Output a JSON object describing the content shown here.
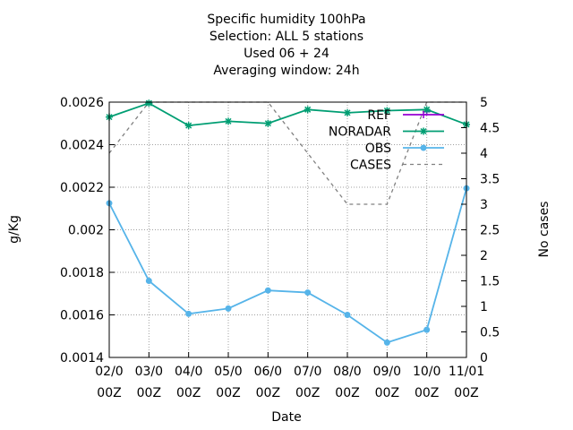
{
  "chart_data": {
    "type": "line",
    "title_lines": [
      "Specific humidity 100hPa",
      "Selection: ALL       5 stations",
      "Used  06  + 24",
      "Averaging window: 24h"
    ],
    "xlabel": "Date",
    "ylabel": "g/Kg",
    "y2label": "No cases",
    "categories": [
      [
        "02/0",
        "00Z"
      ],
      [
        "03/0",
        "00Z"
      ],
      [
        "04/0",
        "00Z"
      ],
      [
        "05/0",
        "00Z"
      ],
      [
        "06/0",
        "00Z"
      ],
      [
        "07/0",
        "00Z"
      ],
      [
        "08/0",
        "00Z"
      ],
      [
        "09/0",
        "00Z"
      ],
      [
        "10/0",
        "00Z"
      ],
      [
        "11/01",
        "00Z"
      ]
    ],
    "ylim": [
      0.0014,
      0.0026
    ],
    "yticks": [
      "0.0014",
      "0.0016",
      "0.0018",
      "0.002",
      "0.0022",
      "0.0024",
      "0.0026"
    ],
    "y2lim": [
      0,
      5
    ],
    "y2ticks": [
      "0",
      "0.5",
      "1",
      "1.5",
      "2",
      "2.5",
      "3",
      "3.5",
      "4",
      "4.5",
      "5"
    ],
    "grid": true,
    "legend_position": "top-right",
    "series": [
      {
        "name": "REF",
        "color": "#9400d3",
        "marker": "plus",
        "axis": "y",
        "values": [
          null,
          null,
          null,
          null,
          null,
          null,
          null,
          null,
          0.002555,
          null
        ]
      },
      {
        "name": "NORADAR",
        "color": "#009e73",
        "marker": "star",
        "axis": "y",
        "values": [
          0.00253,
          0.002595,
          0.00249,
          0.00251,
          0.0025,
          0.002565,
          0.00255,
          0.00256,
          0.002565,
          0.002495
        ]
      },
      {
        "name": "OBS",
        "color": "#56b4e9",
        "marker": "circle",
        "axis": "y",
        "values": [
          0.002125,
          0.00176,
          0.001605,
          0.00163,
          0.001715,
          0.001705,
          0.0016,
          0.00147,
          0.00153,
          0.002195
        ]
      },
      {
        "name": "CASES",
        "color": "#808080",
        "dash": true,
        "axis": "y2",
        "values": [
          4,
          5,
          5,
          5,
          5,
          4,
          3,
          3,
          5,
          5
        ]
      }
    ]
  }
}
